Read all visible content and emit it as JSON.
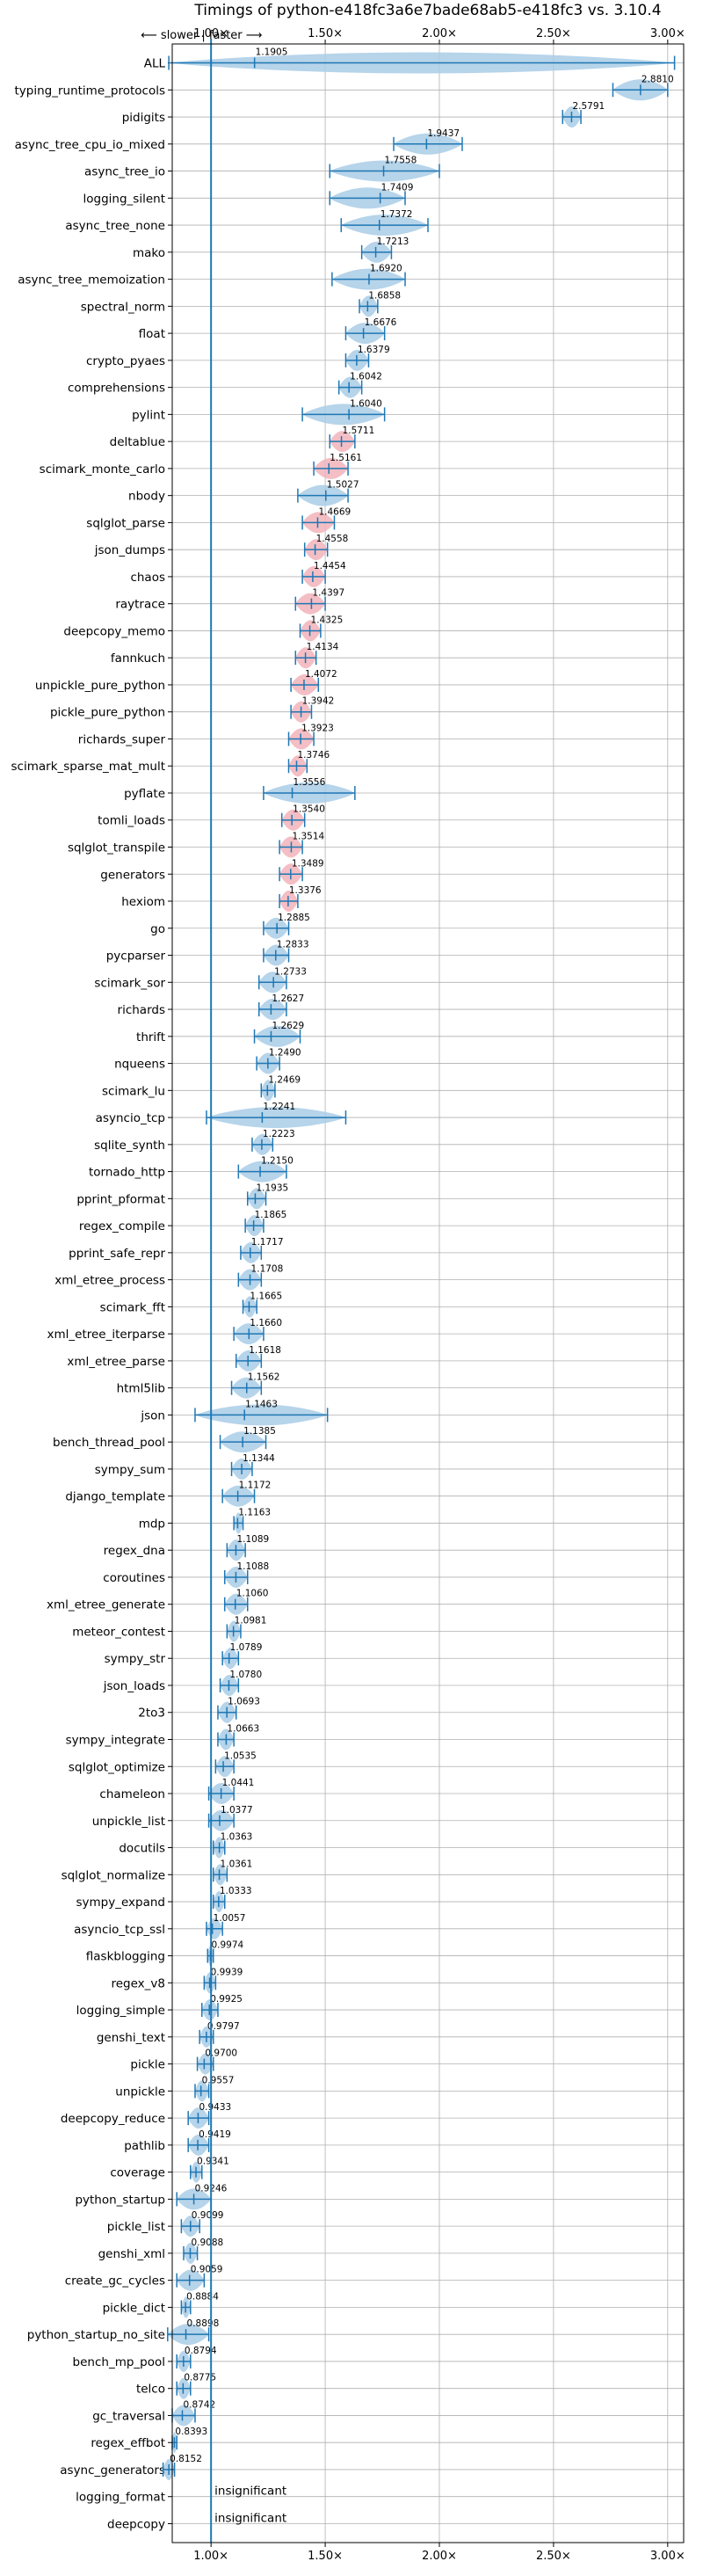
{
  "chart_data": {
    "type": "violin",
    "title": "Timings of python-e418fc3a6e7bade68ab5-e418fc3 vs. 3.10.4",
    "direction_label": "⟵ slower | faster ⟶",
    "insignificant_label": "insignificant",
    "xlim": [
      0.83,
      3.07
    ],
    "xticks": [
      1.0,
      1.5,
      2.0,
      2.5,
      3.0
    ],
    "xtick_labels": [
      "1.00×",
      "1.50×",
      "2.00×",
      "2.50×",
      "3.00×"
    ],
    "grid": true,
    "reference_line": 1.0,
    "colors": {
      "faster": "#a9cce6",
      "slower": "#f2b3bb",
      "errorbar": "#1f77b4",
      "grid": "#b0b0b0"
    },
    "benchmarks": [
      {
        "name": "ALL",
        "value": 1.1905,
        "label": "1.1905",
        "lo": 0.815,
        "hi": 3.03
      },
      {
        "name": "typing_runtime_protocols",
        "value": 2.881,
        "label": "2.8810",
        "lo": 2.76,
        "hi": 3.0
      },
      {
        "name": "pidigits",
        "value": 2.5791,
        "label": "2.5791",
        "lo": 2.54,
        "hi": 2.62
      },
      {
        "name": "async_tree_cpu_io_mixed",
        "value": 1.9437,
        "label": "1.9437",
        "lo": 1.8,
        "hi": 2.1
      },
      {
        "name": "async_tree_io",
        "value": 1.7558,
        "label": "1.7558",
        "lo": 1.52,
        "hi": 2.0
      },
      {
        "name": "logging_silent",
        "value": 1.7409,
        "label": "1.7409",
        "lo": 1.52,
        "hi": 1.85
      },
      {
        "name": "async_tree_none",
        "value": 1.7372,
        "label": "1.7372",
        "lo": 1.57,
        "hi": 1.95
      },
      {
        "name": "mako",
        "value": 1.7213,
        "label": "1.7213",
        "lo": 1.66,
        "hi": 1.79
      },
      {
        "name": "async_tree_memoization",
        "value": 1.692,
        "label": "1.6920",
        "lo": 1.53,
        "hi": 1.85
      },
      {
        "name": "spectral_norm",
        "value": 1.6858,
        "label": "1.6858",
        "lo": 1.65,
        "hi": 1.73
      },
      {
        "name": "float",
        "value": 1.6676,
        "label": "1.6676",
        "lo": 1.59,
        "hi": 1.76
      },
      {
        "name": "crypto_pyaes",
        "value": 1.6379,
        "label": "1.6379",
        "lo": 1.59,
        "hi": 1.69
      },
      {
        "name": "comprehensions",
        "value": 1.6042,
        "label": "1.6042",
        "lo": 1.56,
        "hi": 1.66
      },
      {
        "name": "pylint",
        "value": 1.604,
        "label": "1.6040",
        "lo": 1.4,
        "hi": 1.76
      },
      {
        "name": "deltablue",
        "value": 1.5711,
        "label": "1.5711",
        "lo": 1.52,
        "hi": 1.63
      },
      {
        "name": "scimark_monte_carlo",
        "value": 1.5161,
        "label": "1.5161",
        "lo": 1.45,
        "hi": 1.6
      },
      {
        "name": "nbody",
        "value": 1.5027,
        "label": "1.5027",
        "lo": 1.38,
        "hi": 1.6
      },
      {
        "name": "sqlglot_parse",
        "value": 1.4669,
        "label": "1.4669",
        "lo": 1.4,
        "hi": 1.54
      },
      {
        "name": "json_dumps",
        "value": 1.4558,
        "label": "1.4558",
        "lo": 1.41,
        "hi": 1.51
      },
      {
        "name": "chaos",
        "value": 1.4454,
        "label": "1.4454",
        "lo": 1.4,
        "hi": 1.5
      },
      {
        "name": "raytrace",
        "value": 1.4397,
        "label": "1.4397",
        "lo": 1.37,
        "hi": 1.5
      },
      {
        "name": "deepcopy_memo",
        "value": 1.4325,
        "label": "1.4325",
        "lo": 1.39,
        "hi": 1.48
      },
      {
        "name": "fannkuch",
        "value": 1.4134,
        "label": "1.4134",
        "lo": 1.37,
        "hi": 1.46
      },
      {
        "name": "unpickle_pure_python",
        "value": 1.4072,
        "label": "1.4072",
        "lo": 1.35,
        "hi": 1.47
      },
      {
        "name": "pickle_pure_python",
        "value": 1.3942,
        "label": "1.3942",
        "lo": 1.35,
        "hi": 1.44
      },
      {
        "name": "richards_super",
        "value": 1.3923,
        "label": "1.3923",
        "lo": 1.34,
        "hi": 1.45
      },
      {
        "name": "scimark_sparse_mat_mult",
        "value": 1.3746,
        "label": "1.3746",
        "lo": 1.34,
        "hi": 1.42
      },
      {
        "name": "pyflate",
        "value": 1.3556,
        "label": "1.3556",
        "lo": 1.23,
        "hi": 1.63
      },
      {
        "name": "tomli_loads",
        "value": 1.354,
        "label": "1.3540",
        "lo": 1.31,
        "hi": 1.41
      },
      {
        "name": "sqlglot_transpile",
        "value": 1.3514,
        "label": "1.3514",
        "lo": 1.3,
        "hi": 1.4
      },
      {
        "name": "generators",
        "value": 1.3489,
        "label": "1.3489",
        "lo": 1.3,
        "hi": 1.4
      },
      {
        "name": "hexiom",
        "value": 1.3376,
        "label": "1.3376",
        "lo": 1.3,
        "hi": 1.38
      },
      {
        "name": "go",
        "value": 1.2885,
        "label": "1.2885",
        "lo": 1.23,
        "hi": 1.34
      },
      {
        "name": "pycparser",
        "value": 1.2833,
        "label": "1.2833",
        "lo": 1.23,
        "hi": 1.34
      },
      {
        "name": "scimark_sor",
        "value": 1.2733,
        "label": "1.2733",
        "lo": 1.21,
        "hi": 1.33
      },
      {
        "name": "richards",
        "value": 1.2627,
        "label": "1.2627",
        "lo": 1.21,
        "hi": 1.33
      },
      {
        "name": "thrift",
        "value": 1.2629,
        "label": "1.2629",
        "lo": 1.19,
        "hi": 1.39
      },
      {
        "name": "nqueens",
        "value": 1.249,
        "label": "1.2490",
        "lo": 1.2,
        "hi": 1.3
      },
      {
        "name": "scimark_lu",
        "value": 1.2469,
        "label": "1.2469",
        "lo": 1.22,
        "hi": 1.28
      },
      {
        "name": "asyncio_tcp",
        "value": 1.2241,
        "label": "1.2241",
        "lo": 0.98,
        "hi": 1.59
      },
      {
        "name": "sqlite_synth",
        "value": 1.2223,
        "label": "1.2223",
        "lo": 1.18,
        "hi": 1.27
      },
      {
        "name": "tornado_http",
        "value": 1.215,
        "label": "1.2150",
        "lo": 1.12,
        "hi": 1.33
      },
      {
        "name": "pprint_pformat",
        "value": 1.1935,
        "label": "1.1935",
        "lo": 1.16,
        "hi": 1.24
      },
      {
        "name": "regex_compile",
        "value": 1.1865,
        "label": "1.1865",
        "lo": 1.15,
        "hi": 1.23
      },
      {
        "name": "pprint_safe_repr",
        "value": 1.1717,
        "label": "1.1717",
        "lo": 1.13,
        "hi": 1.22
      },
      {
        "name": "xml_etree_process",
        "value": 1.1708,
        "label": "1.1708",
        "lo": 1.12,
        "hi": 1.22
      },
      {
        "name": "scimark_fft",
        "value": 1.1665,
        "label": "1.1665",
        "lo": 1.14,
        "hi": 1.2
      },
      {
        "name": "xml_etree_iterparse",
        "value": 1.166,
        "label": "1.1660",
        "lo": 1.1,
        "hi": 1.23
      },
      {
        "name": "xml_etree_parse",
        "value": 1.1618,
        "label": "1.1618",
        "lo": 1.11,
        "hi": 1.22
      },
      {
        "name": "html5lib",
        "value": 1.1562,
        "label": "1.1562",
        "lo": 1.09,
        "hi": 1.22
      },
      {
        "name": "json",
        "value": 1.1463,
        "label": "1.1463",
        "lo": 0.93,
        "hi": 1.51
      },
      {
        "name": "bench_thread_pool",
        "value": 1.1385,
        "label": "1.1385",
        "lo": 1.04,
        "hi": 1.24
      },
      {
        "name": "sympy_sum",
        "value": 1.1344,
        "label": "1.1344",
        "lo": 1.09,
        "hi": 1.18
      },
      {
        "name": "django_template",
        "value": 1.1172,
        "label": "1.1172",
        "lo": 1.05,
        "hi": 1.19
      },
      {
        "name": "mdp",
        "value": 1.1163,
        "label": "1.1163",
        "lo": 1.1,
        "hi": 1.14
      },
      {
        "name": "regex_dna",
        "value": 1.1089,
        "label": "1.1089",
        "lo": 1.07,
        "hi": 1.15
      },
      {
        "name": "coroutines",
        "value": 1.1088,
        "label": "1.1088",
        "lo": 1.06,
        "hi": 1.16
      },
      {
        "name": "xml_etree_generate",
        "value": 1.106,
        "label": "1.1060",
        "lo": 1.06,
        "hi": 1.16
      },
      {
        "name": "meteor_contest",
        "value": 1.0981,
        "label": "1.0981",
        "lo": 1.07,
        "hi": 1.13
      },
      {
        "name": "sympy_str",
        "value": 1.0789,
        "label": "1.0789",
        "lo": 1.05,
        "hi": 1.12
      },
      {
        "name": "json_loads",
        "value": 1.078,
        "label": "1.0780",
        "lo": 1.04,
        "hi": 1.12
      },
      {
        "name": "2to3",
        "value": 1.0693,
        "label": "1.0693",
        "lo": 1.03,
        "hi": 1.11
      },
      {
        "name": "sympy_integrate",
        "value": 1.0663,
        "label": "1.0663",
        "lo": 1.03,
        "hi": 1.1
      },
      {
        "name": "sqlglot_optimize",
        "value": 1.0535,
        "label": "1.0535",
        "lo": 1.02,
        "hi": 1.1
      },
      {
        "name": "chameleon",
        "value": 1.0441,
        "label": "1.0441",
        "lo": 0.99,
        "hi": 1.1
      },
      {
        "name": "unpickle_list",
        "value": 1.0377,
        "label": "1.0377",
        "lo": 0.99,
        "hi": 1.1
      },
      {
        "name": "docutils",
        "value": 1.0363,
        "label": "1.0363",
        "lo": 1.01,
        "hi": 1.06
      },
      {
        "name": "sqlglot_normalize",
        "value": 1.0361,
        "label": "1.0361",
        "lo": 1.01,
        "hi": 1.07
      },
      {
        "name": "sympy_expand",
        "value": 1.0333,
        "label": "1.0333",
        "lo": 1.01,
        "hi": 1.06
      },
      {
        "name": "asyncio_tcp_ssl",
        "value": 1.0057,
        "label": "1.0057",
        "lo": 0.98,
        "hi": 1.05
      },
      {
        "name": "flaskblogging",
        "value": 0.9974,
        "label": "0.9974",
        "lo": 0.985,
        "hi": 1.01
      },
      {
        "name": "regex_v8",
        "value": 0.9939,
        "label": "0.9939",
        "lo": 0.97,
        "hi": 1.02
      },
      {
        "name": "logging_simple",
        "value": 0.9925,
        "label": "0.9925",
        "lo": 0.96,
        "hi": 1.03
      },
      {
        "name": "genshi_text",
        "value": 0.9797,
        "label": "0.9797",
        "lo": 0.95,
        "hi": 1.01
      },
      {
        "name": "pickle",
        "value": 0.97,
        "label": "0.9700",
        "lo": 0.94,
        "hi": 1.01
      },
      {
        "name": "unpickle",
        "value": 0.9557,
        "label": "0.9557",
        "lo": 0.93,
        "hi": 0.99
      },
      {
        "name": "deepcopy_reduce",
        "value": 0.9433,
        "label": "0.9433",
        "lo": 0.9,
        "hi": 0.99
      },
      {
        "name": "pathlib",
        "value": 0.9419,
        "label": "0.9419",
        "lo": 0.9,
        "hi": 0.99
      },
      {
        "name": "coverage",
        "value": 0.9341,
        "label": "0.9341",
        "lo": 0.91,
        "hi": 0.96
      },
      {
        "name": "python_startup",
        "value": 0.9246,
        "label": "0.9246",
        "lo": 0.85,
        "hi": 1.0
      },
      {
        "name": "pickle_list",
        "value": 0.9099,
        "label": "0.9099",
        "lo": 0.87,
        "hi": 0.95
      },
      {
        "name": "genshi_xml",
        "value": 0.9088,
        "label": "0.9088",
        "lo": 0.88,
        "hi": 0.94
      },
      {
        "name": "create_gc_cycles",
        "value": 0.9059,
        "label": "0.9059",
        "lo": 0.85,
        "hi": 0.97
      },
      {
        "name": "pickle_dict",
        "value": 0.8884,
        "label": "0.8884",
        "lo": 0.87,
        "hi": 0.91
      },
      {
        "name": "python_startup_no_site",
        "value": 0.8898,
        "label": "0.8898",
        "lo": 0.81,
        "hi": 0.99
      },
      {
        "name": "bench_mp_pool",
        "value": 0.8794,
        "label": "0.8794",
        "lo": 0.85,
        "hi": 0.91
      },
      {
        "name": "telco",
        "value": 0.8775,
        "label": "0.8775",
        "lo": 0.85,
        "hi": 0.91
      },
      {
        "name": "gc_traversal",
        "value": 0.8742,
        "label": "0.8742",
        "lo": 0.83,
        "hi": 0.93
      },
      {
        "name": "regex_effbot",
        "value": 0.8393,
        "label": "0.8393",
        "lo": 0.83,
        "hi": 0.85
      },
      {
        "name": "async_generators",
        "value": 0.8152,
        "label": "0.8152",
        "lo": 0.79,
        "hi": 0.84
      },
      {
        "name": "logging_format",
        "value": null,
        "label": "insignificant"
      },
      {
        "name": "deepcopy",
        "value": null,
        "label": "insignificant"
      }
    ]
  }
}
